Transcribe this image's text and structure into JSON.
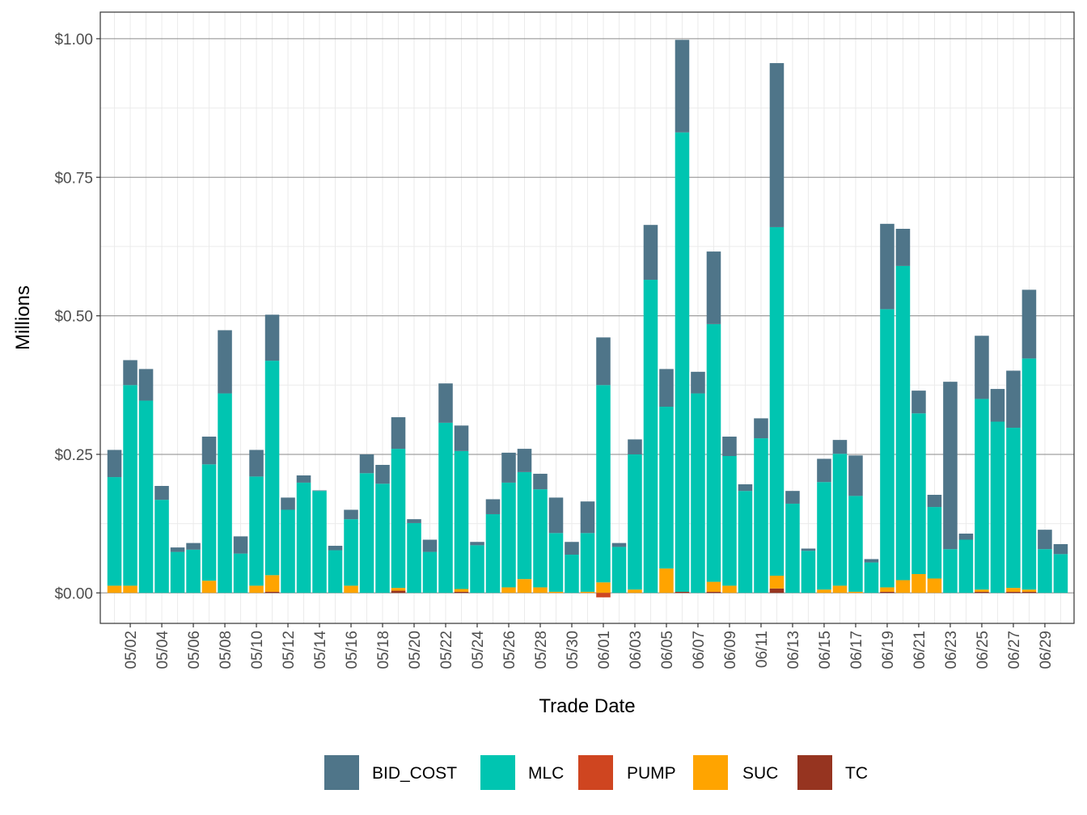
{
  "chart_data": {
    "type": "bar",
    "stacked": true,
    "title": "",
    "xlabel": "Trade Date",
    "ylabel": "Millions",
    "ylim": [
      -0.055,
      1.048
    ],
    "yticks": [
      0,
      0.25,
      0.5,
      0.75,
      1.0
    ],
    "ytick_labels": [
      "$0.00",
      "$0.25",
      "$0.50",
      "$0.75",
      "$1.00"
    ],
    "grid": true,
    "legend_position": "bottom",
    "categories": [
      "05/01",
      "05/02",
      "05/03",
      "05/04",
      "05/05",
      "05/06",
      "05/07",
      "05/08",
      "05/09",
      "05/10",
      "05/11",
      "05/12",
      "05/13",
      "05/14",
      "05/15",
      "05/16",
      "05/17",
      "05/18",
      "05/19",
      "05/20",
      "05/21",
      "05/22",
      "05/23",
      "05/24",
      "05/25",
      "05/26",
      "05/27",
      "05/28",
      "05/29",
      "05/30",
      "05/31",
      "06/01",
      "06/02",
      "06/03",
      "06/04",
      "06/05",
      "06/06",
      "06/07",
      "06/08",
      "06/09",
      "06/10",
      "06/11",
      "06/12",
      "06/13",
      "06/14",
      "06/15",
      "06/16",
      "06/17",
      "06/18",
      "06/19",
      "06/20",
      "06/21",
      "06/22",
      "06/23",
      "06/24",
      "06/25",
      "06/26",
      "06/27",
      "06/28",
      "06/29",
      "06/30"
    ],
    "xtick_labels": [
      "05/02",
      "05/04",
      "05/06",
      "05/08",
      "05/10",
      "05/12",
      "05/14",
      "05/16",
      "05/18",
      "05/20",
      "05/22",
      "05/24",
      "05/26",
      "05/28",
      "05/30",
      "06/01",
      "06/03",
      "06/05",
      "06/07",
      "06/09",
      "06/11",
      "06/13",
      "06/15",
      "06/17",
      "06/19",
      "06/21",
      "06/23",
      "06/25",
      "06/27",
      "06/29"
    ],
    "series": [
      {
        "name": "TC",
        "color": "#963420",
        "values": [
          0,
          0,
          0,
          0,
          0,
          0,
          0,
          0,
          0,
          0,
          0.002,
          0,
          0,
          0,
          0,
          0,
          0,
          0,
          0.004,
          0,
          0,
          0,
          0.002,
          0,
          0,
          0,
          0,
          0,
          0,
          0,
          0,
          0,
          0,
          0,
          0,
          0,
          0.002,
          0,
          0.002,
          0,
          0,
          0,
          0.008,
          0,
          0,
          0,
          0,
          0,
          0,
          0.002,
          0,
          0,
          0,
          0,
          0,
          0.002,
          0,
          0.002,
          0.002,
          0,
          0
        ]
      },
      {
        "name": "SUC",
        "color": "#FFA400",
        "values": [
          0.013,
          0.013,
          0,
          0,
          0,
          0,
          0.022,
          0,
          0,
          0.013,
          0.03,
          0,
          0,
          0,
          0,
          0.013,
          0,
          0,
          0.005,
          0,
          0,
          0,
          0.005,
          0,
          0,
          0.01,
          0.025,
          0.01,
          0.002,
          0,
          0.002,
          0.019,
          0,
          0.006,
          0,
          0.044,
          0,
          0,
          0.018,
          0.013,
          0,
          0,
          0.023,
          0,
          0,
          0.006,
          0.013,
          0.002,
          0,
          0.008,
          0.023,
          0.034,
          0.026,
          0,
          0,
          0.004,
          0,
          0.007,
          0.004,
          0,
          0
        ]
      },
      {
        "name": "PUMP",
        "color": "#CF4520",
        "values": [
          0,
          0,
          0,
          0,
          0,
          0,
          0,
          0,
          0,
          0,
          0,
          0,
          0,
          0,
          0,
          0,
          0,
          0,
          0,
          0,
          0,
          0,
          0,
          0,
          0,
          0,
          0,
          0,
          0,
          0,
          0,
          -0.008,
          0,
          0,
          0,
          0,
          0,
          0,
          0,
          0,
          0,
          0,
          0,
          0,
          0,
          0,
          0,
          0,
          0,
          0,
          0,
          0,
          0,
          0,
          0,
          0,
          0,
          0,
          0,
          0,
          0
        ]
      },
      {
        "name": "MLC",
        "color": "#00C5B1",
        "values": [
          0.196,
          0.362,
          0.347,
          0.168,
          0.074,
          0.078,
          0.21,
          0.36,
          0.071,
          0.197,
          0.387,
          0.15,
          0.199,
          0.184,
          0.077,
          0.12,
          0.216,
          0.197,
          0.251,
          0.126,
          0.074,
          0.307,
          0.249,
          0.086,
          0.142,
          0.189,
          0.193,
          0.177,
          0.106,
          0.069,
          0.106,
          0.356,
          0.083,
          0.244,
          0.565,
          0.292,
          0.829,
          0.36,
          0.465,
          0.234,
          0.184,
          0.279,
          0.629,
          0.161,
          0.076,
          0.194,
          0.238,
          0.173,
          0.055,
          0.502,
          0.567,
          0.29,
          0.129,
          0.079,
          0.096,
          0.344,
          0.309,
          0.289,
          0.417,
          0.079,
          0.07
        ]
      },
      {
        "name": "BID_COST",
        "color": "#4F7589",
        "values": [
          0.049,
          0.045,
          0.057,
          0.025,
          0.008,
          0.012,
          0.05,
          0.114,
          0.031,
          0.048,
          0.083,
          0.022,
          0.013,
          0.001,
          0.008,
          0.017,
          0.034,
          0.034,
          0.057,
          0.007,
          0.022,
          0.071,
          0.046,
          0.006,
          0.027,
          0.054,
          0.042,
          0.028,
          0.064,
          0.023,
          0.057,
          0.086,
          0.007,
          0.027,
          0.099,
          0.068,
          0.167,
          0.039,
          0.131,
          0.035,
          0.012,
          0.036,
          0.296,
          0.023,
          0.004,
          0.042,
          0.025,
          0.073,
          0.006,
          0.154,
          0.067,
          0.041,
          0.022,
          0.302,
          0.011,
          0.114,
          0.059,
          0.103,
          0.124,
          0.035,
          0.018
        ]
      }
    ],
    "legend": [
      {
        "name": "BID_COST",
        "color": "#4F7589"
      },
      {
        "name": "MLC",
        "color": "#00C5B1"
      },
      {
        "name": "PUMP",
        "color": "#CF4520"
      },
      {
        "name": "SUC",
        "color": "#FFA400"
      },
      {
        "name": "TC",
        "color": "#963420"
      }
    ]
  }
}
